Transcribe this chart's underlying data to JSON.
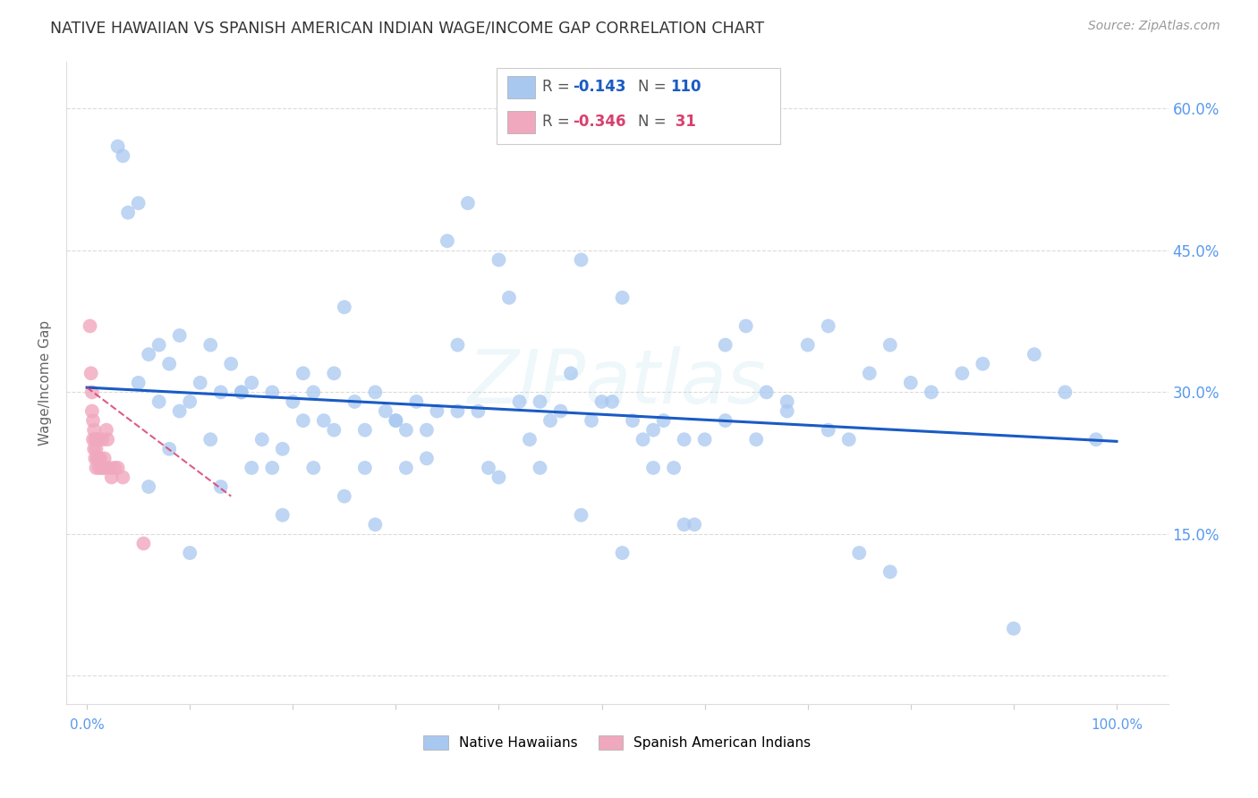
{
  "title": "NATIVE HAWAIIAN VS SPANISH AMERICAN INDIAN WAGE/INCOME GAP CORRELATION CHART",
  "source": "Source: ZipAtlas.com",
  "ylabel": "Wage/Income Gap",
  "series1_color": "#a8c8f0",
  "series2_color": "#f0a8be",
  "trendline1_color": "#1a5bc4",
  "trendline2_color": "#d84070",
  "background_color": "#ffffff",
  "grid_color": "#cccccc",
  "title_color": "#333333",
  "axis_label_color": "#5a9aee",
  "watermark": "ZIPatlas",
  "nh_x": [
    0.03,
    0.035,
    0.04,
    0.05,
    0.06,
    0.07,
    0.08,
    0.09,
    0.1,
    0.11,
    0.12,
    0.13,
    0.14,
    0.15,
    0.16,
    0.17,
    0.18,
    0.19,
    0.2,
    0.21,
    0.22,
    0.23,
    0.24,
    0.25,
    0.26,
    0.27,
    0.28,
    0.29,
    0.3,
    0.31,
    0.32,
    0.33,
    0.34,
    0.35,
    0.36,
    0.37,
    0.38,
    0.39,
    0.4,
    0.41,
    0.42,
    0.43,
    0.44,
    0.45,
    0.46,
    0.47,
    0.48,
    0.49,
    0.5,
    0.51,
    0.52,
    0.53,
    0.54,
    0.55,
    0.56,
    0.57,
    0.58,
    0.59,
    0.6,
    0.62,
    0.64,
    0.66,
    0.68,
    0.7,
    0.72,
    0.74,
    0.76,
    0.78,
    0.8,
    0.82,
    0.85,
    0.87,
    0.9,
    0.92,
    0.95,
    0.98,
    0.05,
    0.07,
    0.09,
    0.12,
    0.15,
    0.18,
    0.21,
    0.24,
    0.27,
    0.3,
    0.33,
    0.36,
    0.4,
    0.44,
    0.48,
    0.52,
    0.55,
    0.58,
    0.62,
    0.65,
    0.68,
    0.72,
    0.75,
    0.78,
    0.06,
    0.08,
    0.1,
    0.13,
    0.16,
    0.19,
    0.22,
    0.25,
    0.28,
    0.31
  ],
  "nh_y": [
    0.56,
    0.55,
    0.49,
    0.5,
    0.34,
    0.35,
    0.33,
    0.36,
    0.29,
    0.31,
    0.35,
    0.3,
    0.33,
    0.3,
    0.31,
    0.25,
    0.3,
    0.24,
    0.29,
    0.32,
    0.3,
    0.27,
    0.32,
    0.39,
    0.29,
    0.26,
    0.3,
    0.28,
    0.27,
    0.22,
    0.29,
    0.26,
    0.28,
    0.46,
    0.35,
    0.5,
    0.28,
    0.22,
    0.44,
    0.4,
    0.29,
    0.25,
    0.29,
    0.27,
    0.28,
    0.32,
    0.44,
    0.27,
    0.29,
    0.29,
    0.4,
    0.27,
    0.25,
    0.22,
    0.27,
    0.22,
    0.25,
    0.16,
    0.25,
    0.35,
    0.37,
    0.3,
    0.29,
    0.35,
    0.37,
    0.25,
    0.32,
    0.35,
    0.31,
    0.3,
    0.32,
    0.33,
    0.05,
    0.34,
    0.3,
    0.25,
    0.31,
    0.29,
    0.28,
    0.25,
    0.3,
    0.22,
    0.27,
    0.26,
    0.22,
    0.27,
    0.23,
    0.28,
    0.21,
    0.22,
    0.17,
    0.13,
    0.26,
    0.16,
    0.27,
    0.25,
    0.28,
    0.26,
    0.13,
    0.11,
    0.2,
    0.24,
    0.13,
    0.2,
    0.22,
    0.17,
    0.22,
    0.19,
    0.16,
    0.26
  ],
  "sai_x": [
    0.003,
    0.004,
    0.005,
    0.005,
    0.006,
    0.006,
    0.007,
    0.007,
    0.008,
    0.008,
    0.009,
    0.009,
    0.01,
    0.01,
    0.011,
    0.011,
    0.012,
    0.013,
    0.014,
    0.015,
    0.016,
    0.017,
    0.018,
    0.019,
    0.02,
    0.022,
    0.024,
    0.027,
    0.03,
    0.035,
    0.055
  ],
  "sai_y": [
    0.37,
    0.32,
    0.3,
    0.28,
    0.27,
    0.25,
    0.26,
    0.24,
    0.25,
    0.23,
    0.24,
    0.22,
    0.25,
    0.23,
    0.25,
    0.23,
    0.22,
    0.23,
    0.22,
    0.25,
    0.22,
    0.23,
    0.22,
    0.26,
    0.25,
    0.22,
    0.21,
    0.22,
    0.22,
    0.21,
    0.14
  ],
  "trendline1_x0": 0.0,
  "trendline1_y0": 0.305,
  "trendline1_x1": 1.0,
  "trendline1_y1": 0.248,
  "trendline2_x0": 0.0,
  "trendline2_y0": 0.305,
  "trendline2_x1": 0.14,
  "trendline2_y1": 0.19,
  "xlim": [
    -0.02,
    1.05
  ],
  "ylim": [
    -0.03,
    0.65
  ],
  "ytick_vals": [
    0.0,
    0.15,
    0.3,
    0.45,
    0.6
  ],
  "ytick_labels": [
    "",
    "15.0%",
    "30.0%",
    "45.0%",
    "60.0%"
  ]
}
